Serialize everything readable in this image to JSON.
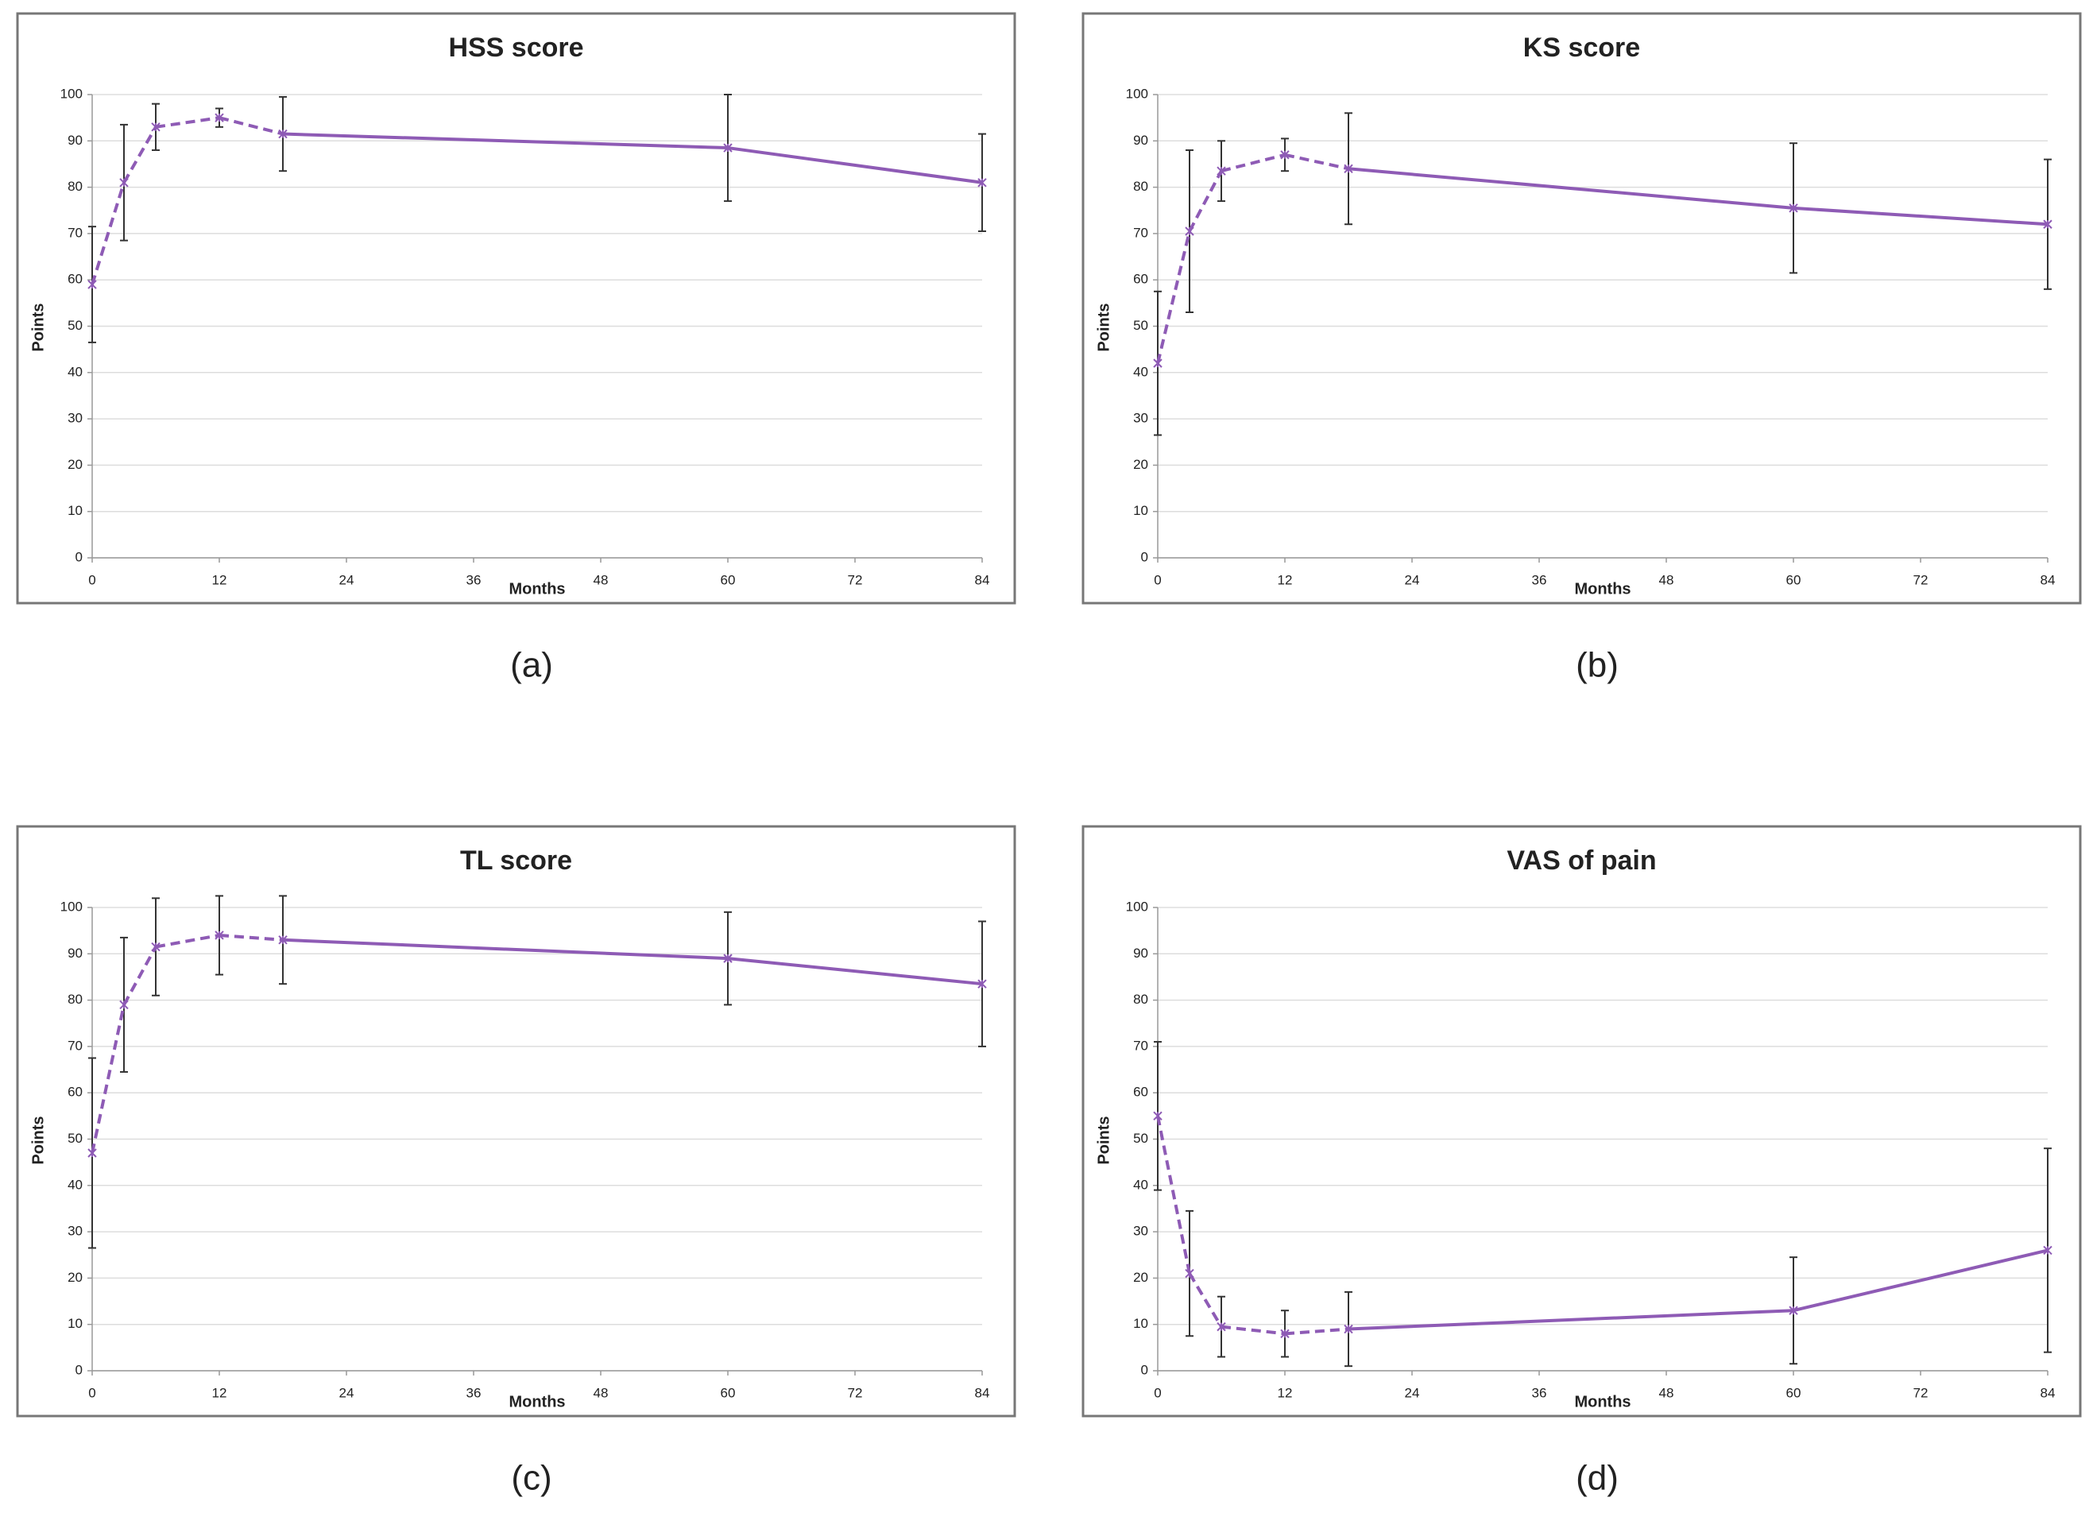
{
  "chart_data": [
    {
      "type": "line",
      "title": "HSS score",
      "caption": "(a)",
      "xlabel": "Months",
      "ylabel": "Points",
      "x": [
        0,
        3,
        6,
        12,
        18,
        60,
        84
      ],
      "xlim": [
        0,
        84
      ],
      "xticks": [
        0,
        12,
        24,
        36,
        48,
        60,
        72,
        84
      ],
      "ylim": [
        0,
        100
      ],
      "yticks": [
        0,
        10,
        20,
        30,
        40,
        50,
        60,
        70,
        80,
        90,
        100
      ],
      "grid": true,
      "series": [
        {
          "color": "#8e5bb5",
          "values": [
            59,
            81,
            93,
            95,
            91.5,
            88.5,
            81
          ],
          "errors": [
            12.5,
            12.5,
            5,
            2,
            8,
            11.5,
            10.5
          ],
          "segment_styles": [
            "dashed",
            "dashed",
            "dashed",
            "dashed",
            "solid",
            "solid"
          ]
        }
      ]
    },
    {
      "type": "line",
      "title": "KS score",
      "caption": "(b)",
      "xlabel": "Months",
      "ylabel": "Points",
      "x": [
        0,
        3,
        6,
        12,
        18,
        60,
        84
      ],
      "xlim": [
        0,
        84
      ],
      "xticks": [
        0,
        12,
        24,
        36,
        48,
        60,
        72,
        84
      ],
      "ylim": [
        0,
        100
      ],
      "yticks": [
        0,
        10,
        20,
        30,
        40,
        50,
        60,
        70,
        80,
        90,
        100
      ],
      "grid": true,
      "series": [
        {
          "color": "#8e5bb5",
          "values": [
            42,
            70.5,
            83.5,
            87,
            84,
            75.5,
            72
          ],
          "errors": [
            15.5,
            17.5,
            6.5,
            3.5,
            12,
            14,
            14
          ],
          "segment_styles": [
            "dashed",
            "dashed",
            "dashed",
            "dashed",
            "solid",
            "solid"
          ]
        }
      ]
    },
    {
      "type": "line",
      "title": "TL score",
      "caption": "(c)",
      "xlabel": "Months",
      "ylabel": "Points",
      "x": [
        0,
        3,
        6,
        12,
        18,
        60,
        84
      ],
      "xlim": [
        0,
        84
      ],
      "xticks": [
        0,
        12,
        24,
        36,
        48,
        60,
        72,
        84
      ],
      "ylim": [
        0,
        100
      ],
      "yticks": [
        0,
        10,
        20,
        30,
        40,
        50,
        60,
        70,
        80,
        90,
        100
      ],
      "grid": true,
      "series": [
        {
          "color": "#8e5bb5",
          "values": [
            47,
            79,
            91.5,
            94,
            93,
            89,
            83.5
          ],
          "errors": [
            20.5,
            14.5,
            10.5,
            8.5,
            9.5,
            10,
            13.5
          ],
          "segment_styles": [
            "dashed",
            "dashed",
            "dashed",
            "dashed",
            "solid",
            "solid"
          ]
        }
      ]
    },
    {
      "type": "line",
      "title": "VAS of pain",
      "caption": "(d)",
      "xlabel": "Months",
      "ylabel": "Points",
      "x": [
        0,
        3,
        6,
        12,
        18,
        60,
        84
      ],
      "xlim": [
        0,
        84
      ],
      "xticks": [
        0,
        12,
        24,
        36,
        48,
        60,
        72,
        84
      ],
      "ylim": [
        0,
        100
      ],
      "yticks": [
        0,
        10,
        20,
        30,
        40,
        50,
        60,
        70,
        80,
        90,
        100
      ],
      "grid": true,
      "series": [
        {
          "color": "#8e5bb5",
          "values": [
            55,
            21,
            9.5,
            8,
            9,
            13,
            26
          ],
          "errors": [
            16,
            13.5,
            6.5,
            5,
            8,
            11.5,
            22
          ],
          "segment_styles": [
            "dashed",
            "dashed",
            "dashed",
            "dashed",
            "solid",
            "solid"
          ]
        }
      ]
    }
  ]
}
